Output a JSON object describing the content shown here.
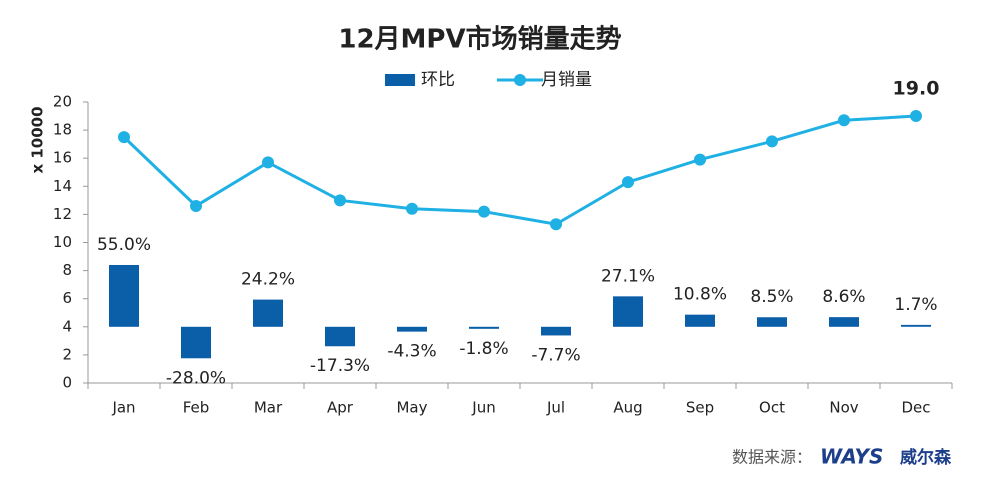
{
  "chart_data": {
    "type": "combo",
    "title": "12月MPV市场销量走势",
    "y_label": "x 10000",
    "categories": [
      "Jan",
      "Feb",
      "Mar",
      "Apr",
      "May",
      "Jun",
      "Jul",
      "Aug",
      "Sep",
      "Oct",
      "Nov",
      "Dec"
    ],
    "series": [
      {
        "name": "环比",
        "type": "bar",
        "axis": "y2",
        "color": "#0b5ea8",
        "values": [
          55.0,
          -28.0,
          24.2,
          -17.3,
          -4.3,
          -1.8,
          -7.7,
          27.1,
          10.8,
          8.5,
          8.6,
          1.7
        ],
        "value_labels": [
          "55.0%",
          "-28.0%",
          "24.2%",
          "-17.3%",
          "-4.3%",
          "-1.8%",
          "-7.7%",
          "27.1%",
          "10.8%",
          "8.5%",
          "8.6%",
          "1.7%"
        ]
      },
      {
        "name": "月销量",
        "type": "line",
        "color": "#1fb0e4",
        "values": [
          17.5,
          12.6,
          15.7,
          13.0,
          12.4,
          12.2,
          11.3,
          14.3,
          15.9,
          17.2,
          18.7,
          19.0
        ],
        "value_labels": [
          null,
          null,
          null,
          null,
          null,
          null,
          null,
          null,
          null,
          null,
          null,
          "19.0"
        ]
      }
    ],
    "ylim": [
      0,
      20
    ],
    "yticks": [
      0,
      2,
      4,
      6,
      8,
      10,
      12,
      14,
      16,
      18,
      20
    ],
    "y2lim": [
      -50,
      200
    ],
    "grid": false,
    "legend": "top",
    "source": "数据来源：",
    "source_logo": "WAYS",
    "source_brand": "威尔森"
  }
}
